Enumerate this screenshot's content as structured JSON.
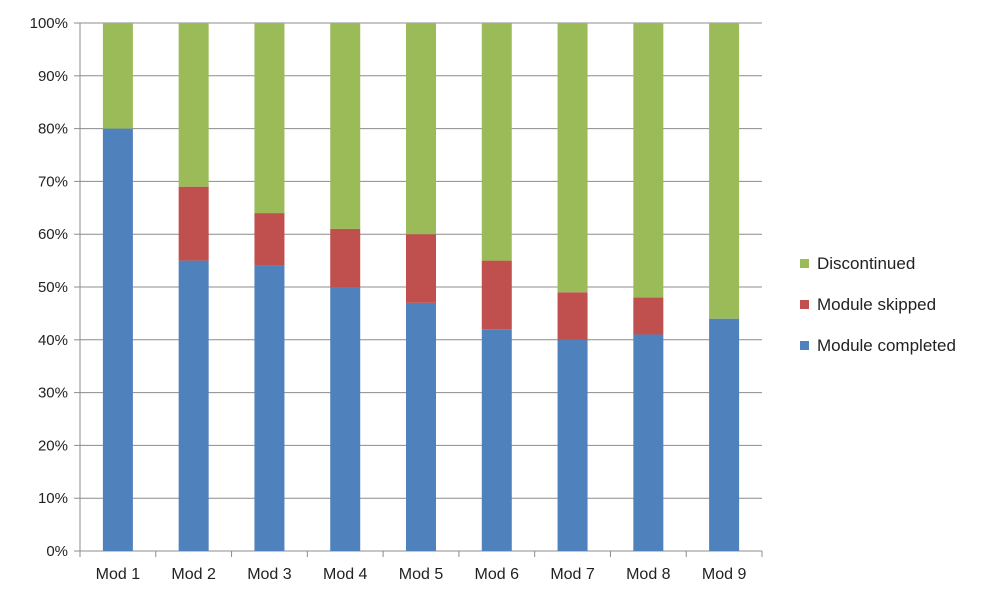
{
  "chart_data": {
    "type": "bar",
    "stacked": true,
    "categories": [
      "Mod 1",
      "Mod 2",
      "Mod 3",
      "Mod 4",
      "Mod 5",
      "Mod 6",
      "Mod 7",
      "Mod 8",
      "Mod 9"
    ],
    "series": [
      {
        "name": "Module completed",
        "color": "#4f81bd",
        "values": [
          80,
          55,
          54,
          50,
          47,
          42,
          40,
          41,
          44
        ]
      },
      {
        "name": "Module skipped",
        "color": "#c0504d",
        "values": [
          0,
          14,
          10,
          11,
          13,
          13,
          9,
          7,
          0
        ]
      },
      {
        "name": "Discontinued",
        "color": "#9bbb59",
        "values": [
          20,
          31,
          36,
          39,
          40,
          45,
          51,
          52,
          56
        ]
      }
    ],
    "yticks": [
      "0%",
      "10%",
      "20%",
      "30%",
      "40%",
      "50%",
      "60%",
      "70%",
      "80%",
      "90%",
      "100%"
    ],
    "ylim": [
      0,
      100
    ],
    "y_unit": "%",
    "grid": true,
    "legend_position": "right",
    "legend_order": [
      "Discontinued",
      "Module skipped",
      "Module completed"
    ],
    "title": "",
    "xlabel": "",
    "ylabel": ""
  }
}
